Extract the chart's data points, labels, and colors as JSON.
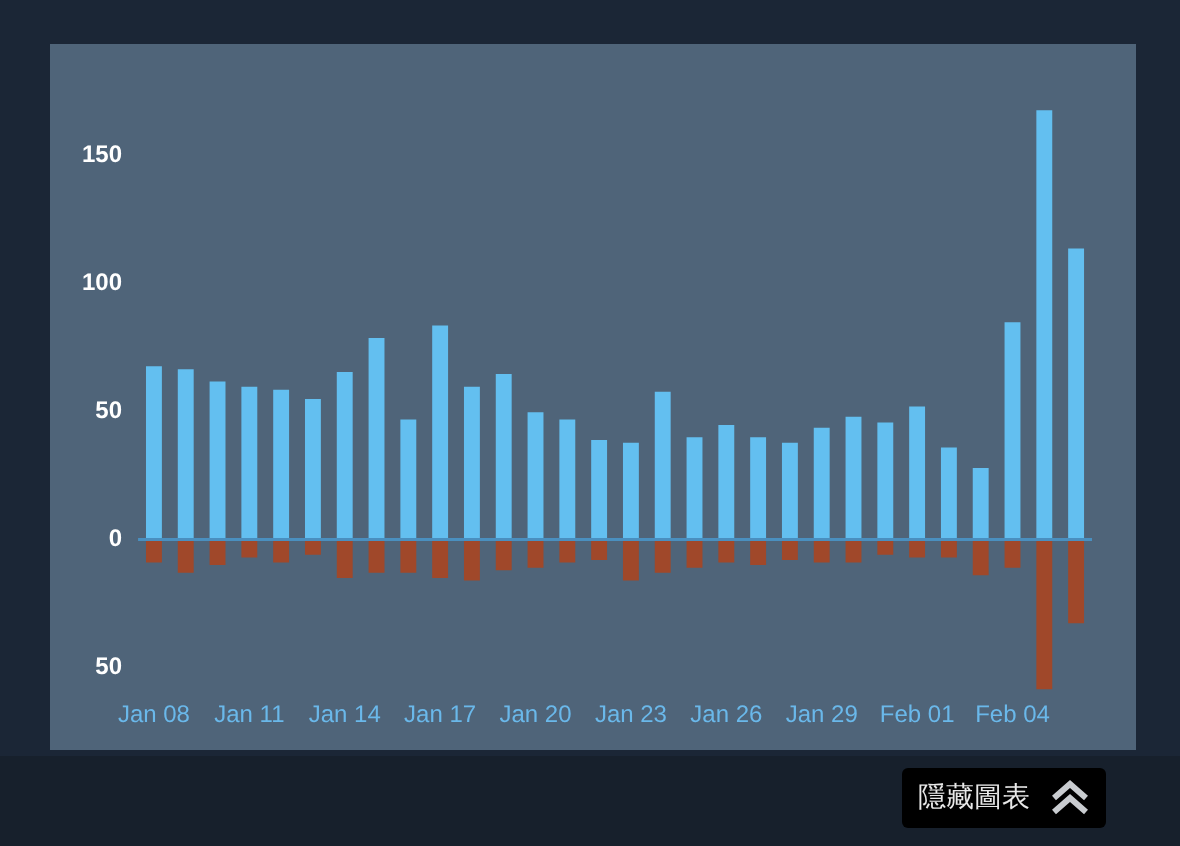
{
  "chart_data": {
    "type": "bar",
    "stacked": true,
    "categories": [
      "Jan 08",
      null,
      null,
      "Jan 11",
      null,
      null,
      "Jan 14",
      null,
      null,
      "Jan 17",
      null,
      null,
      "Jan 20",
      null,
      null,
      "Jan 23",
      null,
      null,
      "Jan 26",
      null,
      null,
      "Jan 29",
      null,
      null,
      "Feb 01",
      null,
      null,
      "Feb 04",
      null,
      null
    ],
    "series": [
      {
        "color": "#63bff0",
        "values": [
          67.6,
          66.5,
          61.7,
          59.6,
          58.5,
          54.8,
          65.4,
          78.7,
          46.8,
          83.5,
          59.6,
          64.6,
          49.7,
          46.8,
          38.8,
          37.8,
          57.7,
          39.9,
          44.7,
          39.9,
          37.8,
          43.6,
          47.9,
          45.7,
          51.9,
          35.9,
          27.9,
          84.8,
          167.6,
          113.6
        ]
      },
      {
        "color": "#a0482a",
        "values": [
          -9,
          -13,
          -10,
          -7,
          -9,
          -6,
          -15,
          -13,
          -13,
          -15,
          -16,
          -12,
          -11,
          -9,
          -8,
          -16,
          -13,
          -11,
          -9,
          -10,
          -8,
          -9,
          -9,
          -6,
          -7,
          -7,
          -14,
          -11,
          -58.5,
          -32.7
        ]
      }
    ],
    "ylim": [
      -60,
      170
    ],
    "yticks": [
      {
        "value": -50,
        "label": "50"
      },
      0,
      50,
      100,
      150
    ],
    "grid": false,
    "legend": false,
    "ref_lines": [
      {
        "axis": "y",
        "value": 0,
        "color": "#4a8fbf"
      }
    ],
    "annotations": [
      "隱藏圖表"
    ]
  }
}
